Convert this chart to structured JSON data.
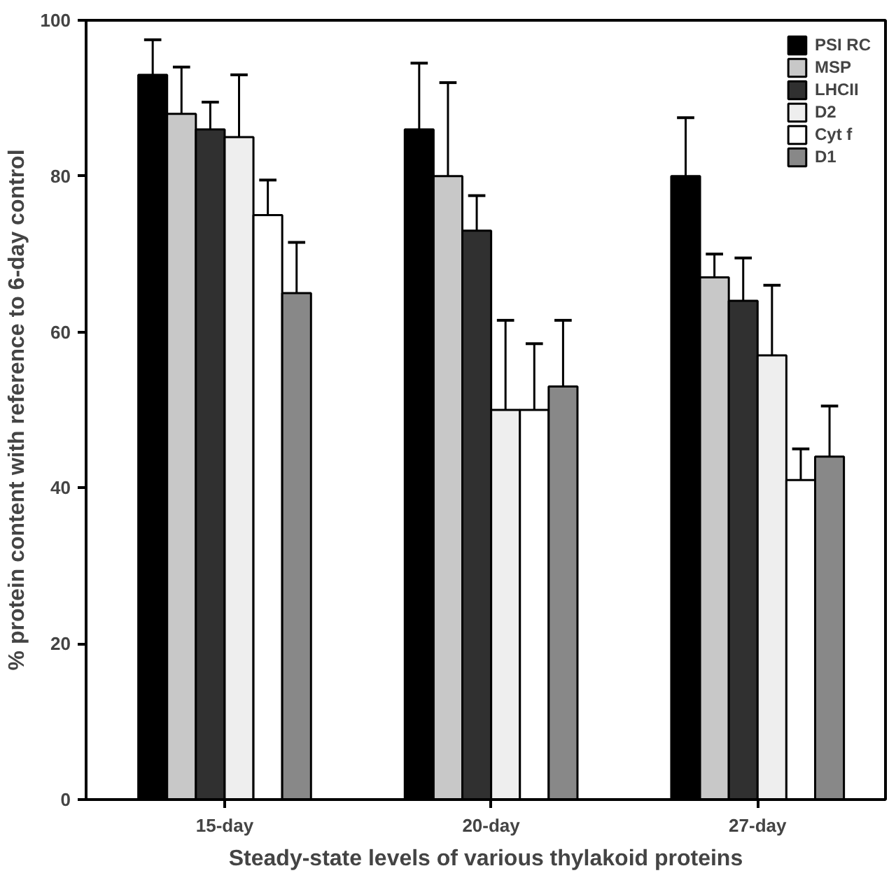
{
  "chart_data": {
    "type": "bar",
    "categories": [
      "15-day",
      "20-day",
      "27-day"
    ],
    "xlabel": "Steady-state levels of various thylakoid proteins",
    "ylabel": "% protein content with reference to 6-day control",
    "ylim": [
      0,
      100
    ],
    "yticks": [
      0,
      20,
      40,
      60,
      80,
      100
    ],
    "grid": false,
    "legend": "top right",
    "series": [
      {
        "name": "PSI RC",
        "color": "#000000",
        "values": [
          93,
          86,
          80
        ],
        "errors": [
          [
            93,
            97.5
          ],
          [
            86,
            94.5
          ],
          [
            80,
            87.5
          ]
        ]
      },
      {
        "name": "MSP",
        "color": "#c8c8c8",
        "values": [
          88,
          80,
          67
        ],
        "errors": [
          [
            88,
            94
          ],
          [
            80,
            92
          ],
          [
            67,
            70
          ]
        ]
      },
      {
        "name": "LHCII",
        "color": "#303030",
        "values": [
          86,
          73,
          64
        ],
        "errors": [
          [
            86,
            89.5
          ],
          [
            73,
            77.5
          ],
          [
            64,
            69.5
          ]
        ]
      },
      {
        "name": "D2",
        "color": "#eeeeee",
        "values": [
          85,
          50,
          57
        ],
        "errors": [
          [
            85,
            93
          ],
          [
            50,
            61.5
          ],
          [
            57,
            66
          ]
        ]
      },
      {
        "name": "Cyt f",
        "color": "#ffffff",
        "values": [
          75,
          50,
          41
        ],
        "errors": [
          [
            75,
            79.5
          ],
          [
            50,
            58.5
          ],
          [
            41,
            45
          ]
        ]
      },
      {
        "name": "D1",
        "color": "#888888",
        "values": [
          65,
          53,
          44
        ],
        "errors": [
          [
            65,
            71.5
          ],
          [
            53,
            61.5
          ],
          [
            44,
            50.5
          ]
        ]
      }
    ]
  }
}
